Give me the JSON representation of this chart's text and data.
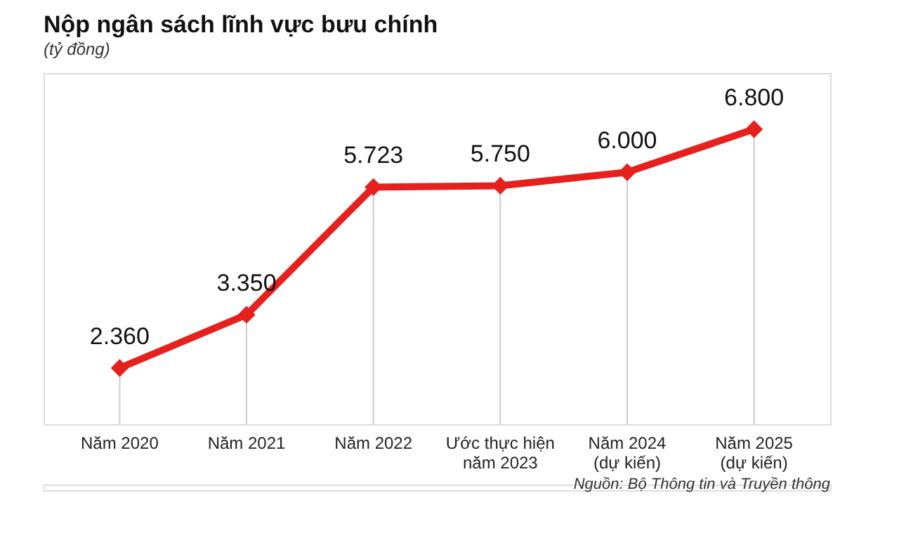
{
  "chart_data": {
    "type": "line",
    "title": "Nộp ngân sách lĩnh vực bưu chính",
    "subtitle": "(tỷ đồng)",
    "categories": [
      "Năm 2020",
      "Năm 2021",
      "Năm 2022",
      "Ước thực hiện\nnăm 2023",
      "Năm 2024\n(dự kiến)",
      "Năm 2025\n(dự kiến)"
    ],
    "series": [
      {
        "color": "#e5201d",
        "values": [
          2360,
          3350,
          5723,
          5750,
          6000,
          6800
        ],
        "value_labels": [
          "2.360",
          "3.350",
          "5.723",
          "5.750",
          "6.000",
          "6.800"
        ]
      }
    ],
    "marker": "diamond",
    "grid": "x",
    "annotations": [
      "Nguồn: Bộ Thông tin và Truyền thông"
    ]
  }
}
